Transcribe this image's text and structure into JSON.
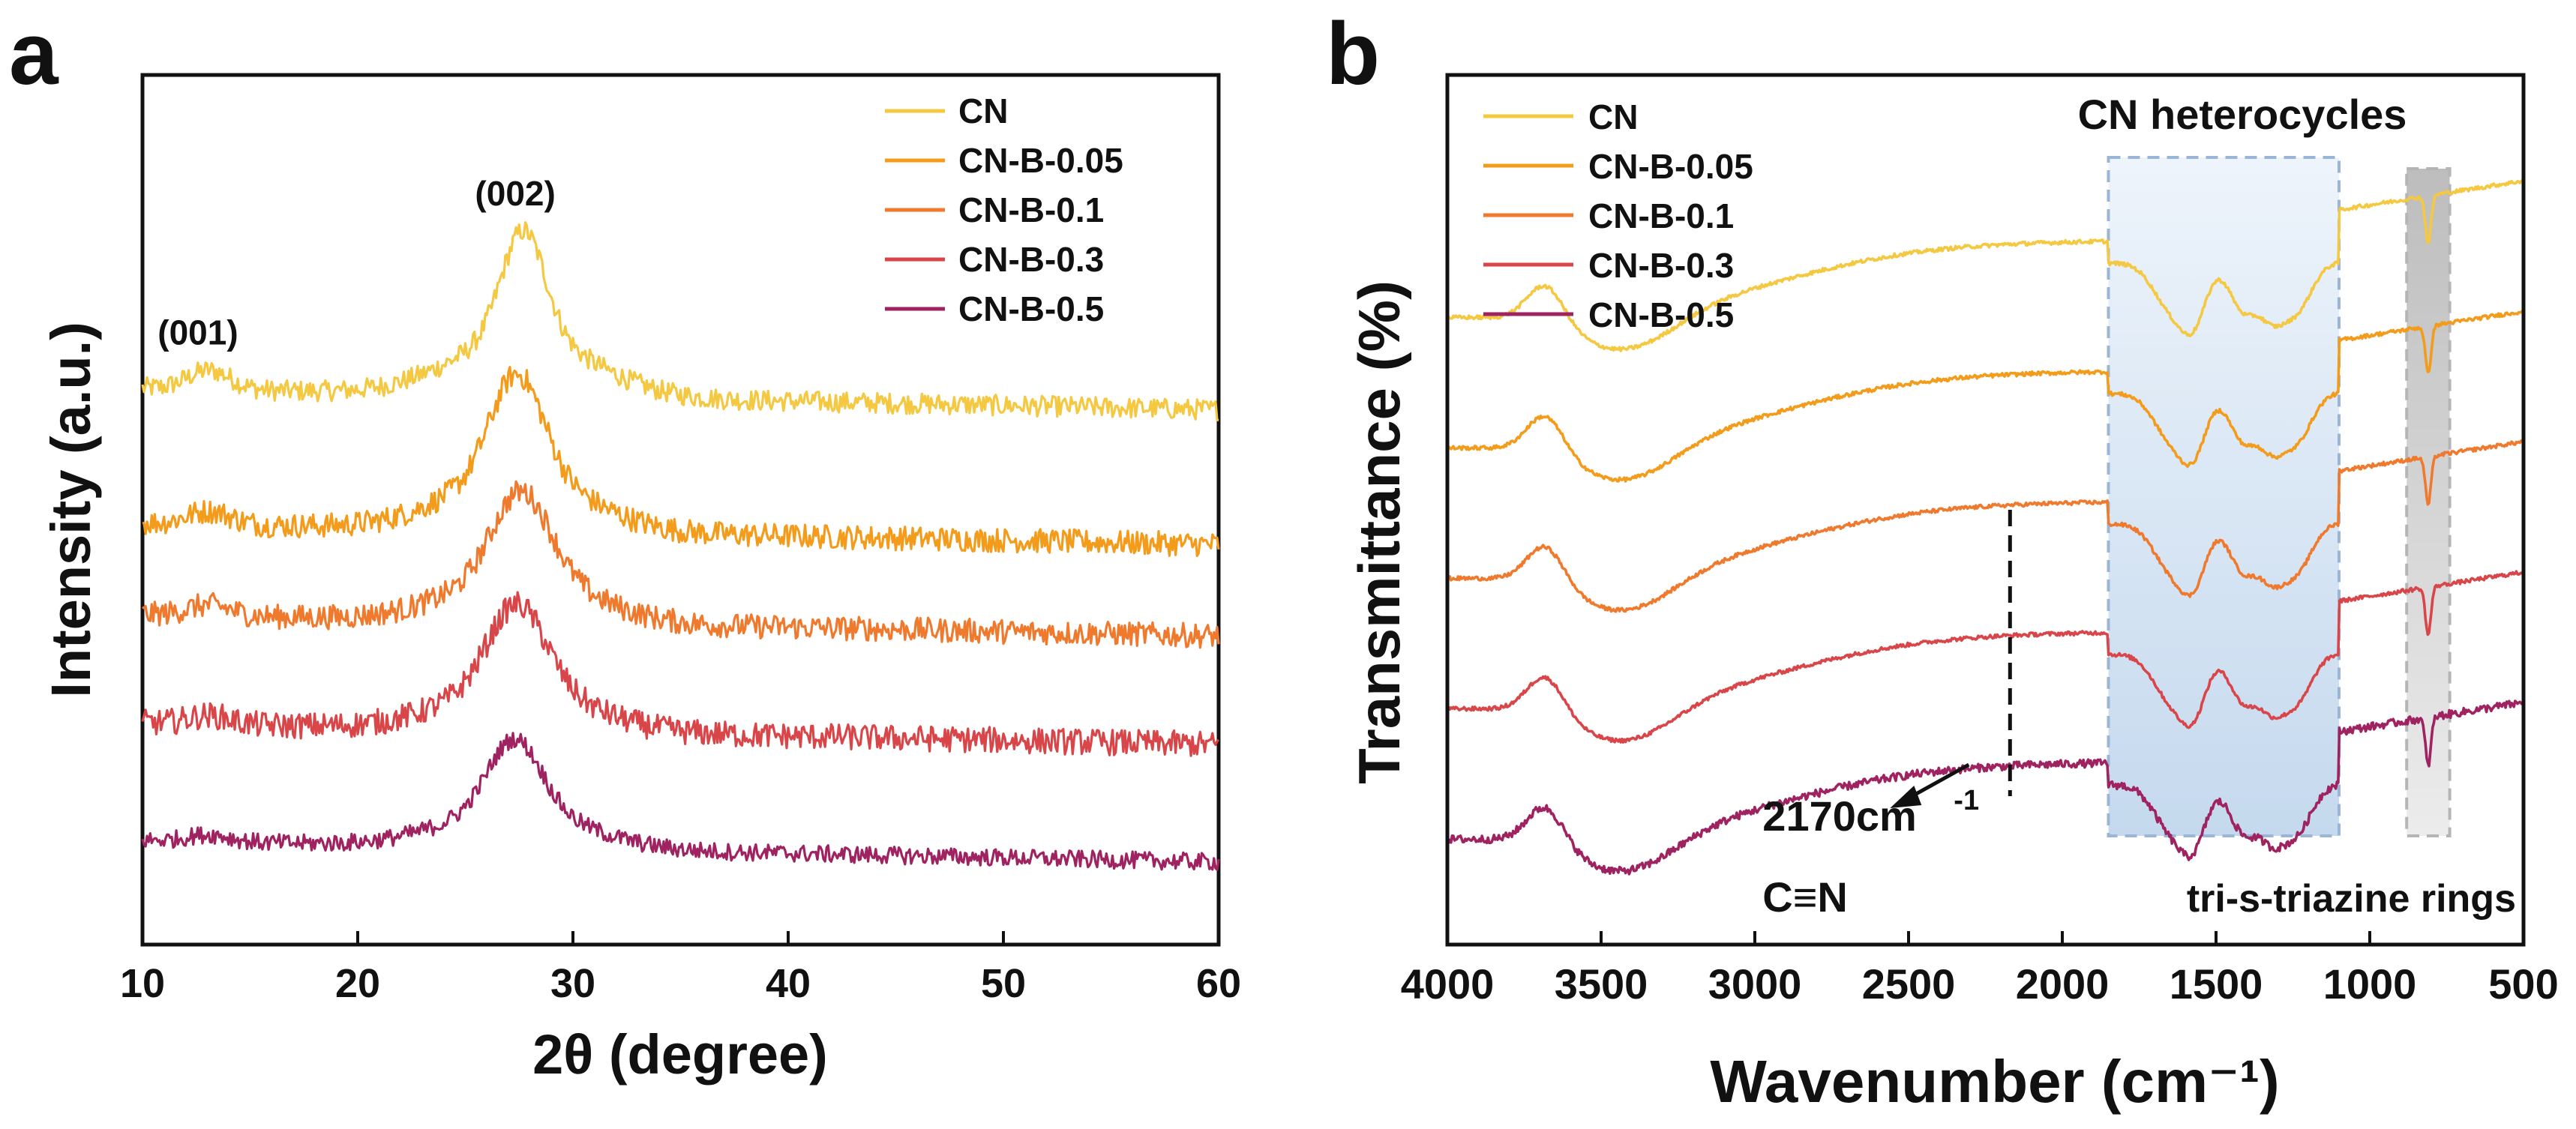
{
  "chart_data": [
    {
      "panel": "a",
      "type": "line",
      "title": "",
      "xlabel": "2θ (degree)",
      "ylabel": "Intensity (a.u.)",
      "xlim": [
        10,
        60
      ],
      "xticks": [
        10,
        20,
        30,
        40,
        50,
        60
      ],
      "x_tick_labels": [
        "10",
        "20",
        "30",
        "40",
        "50",
        "60"
      ],
      "ylim": [
        0,
        10
      ],
      "y_ticks_shown": false,
      "grid": false,
      "legend_position": "top-right",
      "peak_labels": [
        {
          "text": "(001)",
          "x": 13.1
        },
        {
          "text": "(002)",
          "x": 27.6
        }
      ],
      "series": [
        {
          "name": "CN",
          "color": "#f5c842",
          "baseline": 6.15,
          "peak_height": 1.9,
          "peak_center": 27.7,
          "peak_width": 1.0,
          "small_peak_height": 0.22,
          "noise": 0.12
        },
        {
          "name": "CN-B-0.05",
          "color": "#f39c1c",
          "baseline": 4.6,
          "peak_height": 1.8,
          "peak_center": 27.4,
          "peak_width": 1.2,
          "small_peak_height": 0.15,
          "noise": 0.14
        },
        {
          "name": "CN-B-0.1",
          "color": "#ef7a2e",
          "baseline": 3.55,
          "peak_height": 1.5,
          "peak_center": 27.6,
          "peak_width": 1.3,
          "small_peak_height": 0.12,
          "noise": 0.14
        },
        {
          "name": "CN-B-0.3",
          "color": "#d9464a",
          "baseline": 2.3,
          "peak_height": 1.45,
          "peak_center": 27.4,
          "peak_width": 1.3,
          "small_peak_height": 0.1,
          "noise": 0.15
        },
        {
          "name": "CN-B-0.5",
          "color": "#9e2360",
          "baseline": 0.95,
          "peak_height": 1.25,
          "peak_center": 27.3,
          "peak_width": 1.2,
          "small_peak_height": 0.08,
          "noise": 0.1
        }
      ]
    },
    {
      "panel": "b",
      "type": "line",
      "title": "",
      "xlabel": "Wavenumber (cm⁻¹)",
      "ylabel": "Transmittance (%)",
      "xlim": [
        4000,
        500
      ],
      "xticks": [
        4000,
        3500,
        3000,
        2500,
        2000,
        1500,
        1000,
        500
      ],
      "x_tick_labels": [
        "4000",
        "3500",
        "3000",
        "2500",
        "2000",
        "1500",
        "1000",
        "500"
      ],
      "ylim": [
        0,
        10
      ],
      "y_ticks_shown": false,
      "grid": false,
      "legend_position": "top-left",
      "annotations": {
        "heterocycles_region": {
          "label": "CN heterocycles",
          "x_range": [
            1850,
            1100
          ]
        },
        "triazine_region": {
          "label": "tri-s-triazine rings",
          "x_range": [
            880,
            740
          ]
        },
        "cn_marker": {
          "x": 2170,
          "value_label": "2170cm",
          "value_sup": "-1",
          "bond_label": "C≡N"
        }
      },
      "series": [
        {
          "name": "CN",
          "color": "#f5c842",
          "offset": 8.1
        },
        {
          "name": "CN-B-0.05",
          "color": "#f39c1c",
          "offset": 6.6
        },
        {
          "name": "CN-B-0.1",
          "color": "#ef7a2e",
          "offset": 5.1
        },
        {
          "name": "CN-B-0.3",
          "color": "#d9464a",
          "offset": 3.6
        },
        {
          "name": "CN-B-0.5",
          "color": "#9e2360",
          "offset": 2.1
        }
      ]
    }
  ],
  "panel_labels": {
    "a": "a",
    "b": "b"
  }
}
